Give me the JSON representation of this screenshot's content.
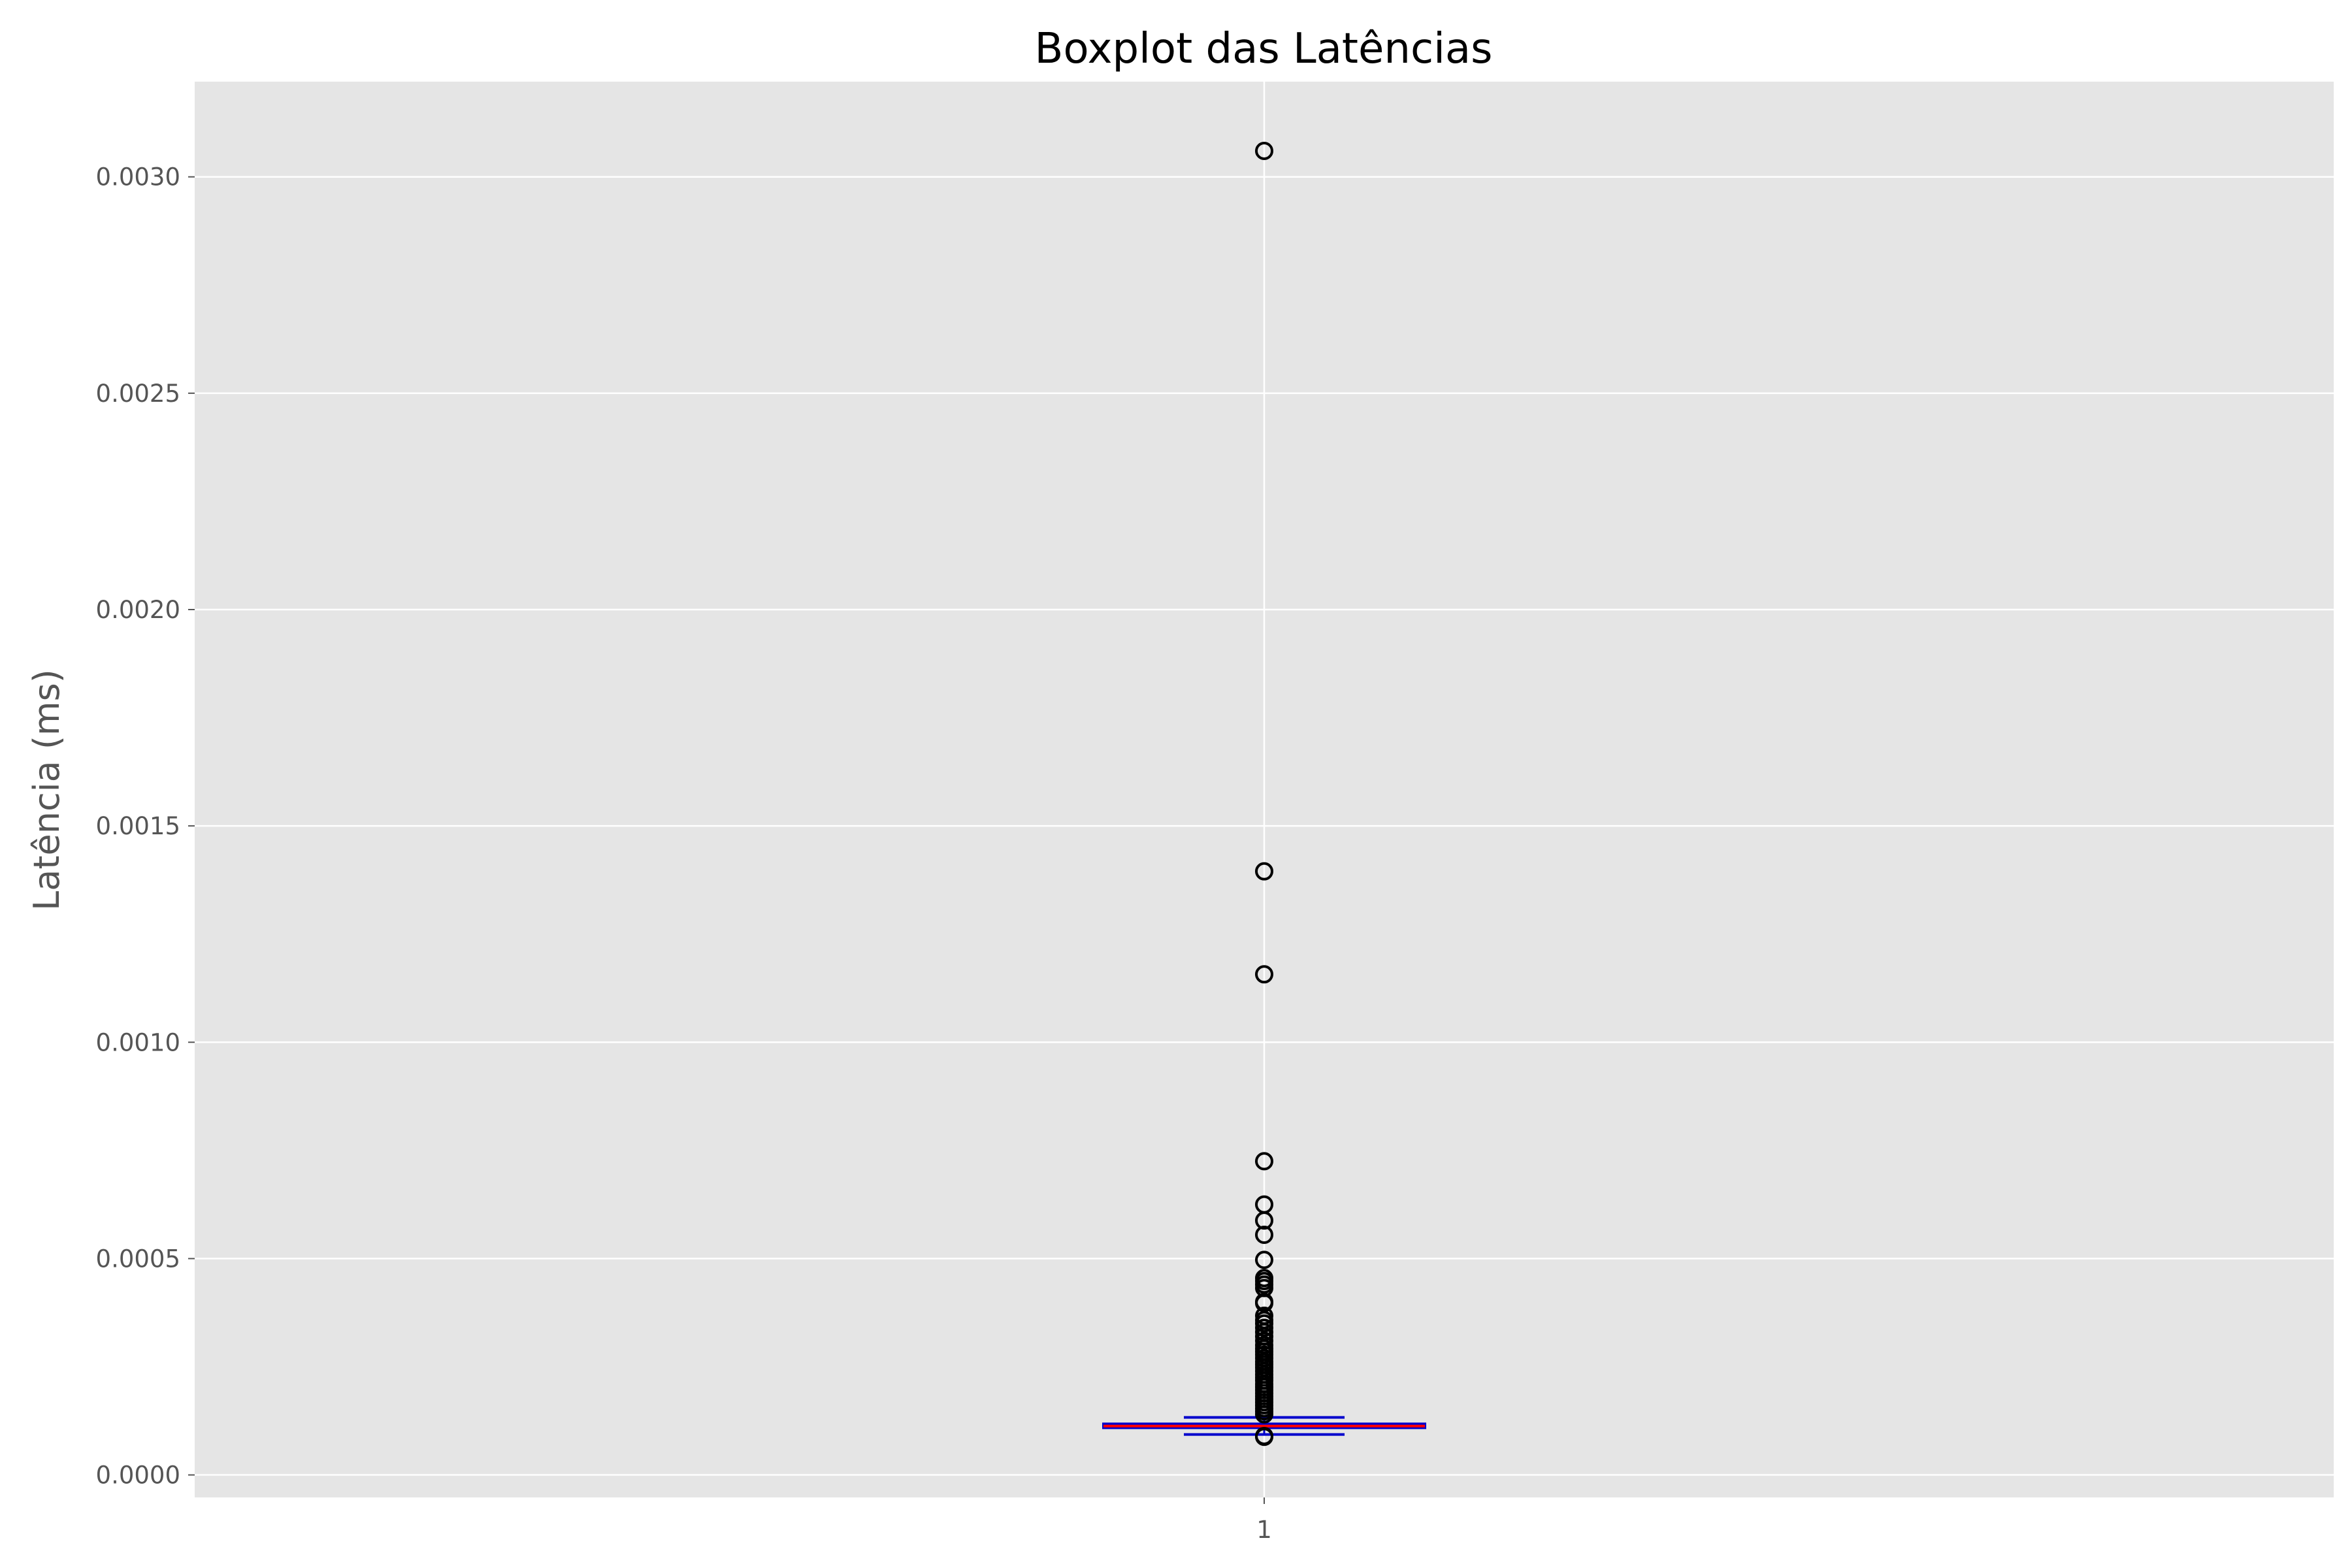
{
  "chart_data": {
    "type": "boxplot",
    "title": "Boxplot das Latências",
    "xlabel": "",
    "ylabel": "Latência (ms)",
    "ylim": [
      -5.2e-05,
      0.00322
    ],
    "grid": true,
    "categories": [
      "1"
    ],
    "y_ticks": [
      {
        "value": 0.0,
        "label": "0.0000"
      },
      {
        "value": 0.0005,
        "label": "0.0005"
      },
      {
        "value": 0.001,
        "label": "0.0010"
      },
      {
        "value": 0.0015,
        "label": "0.0015"
      },
      {
        "value": 0.002,
        "label": "0.0020"
      },
      {
        "value": 0.0025,
        "label": "0.0025"
      },
      {
        "value": 0.003,
        "label": "0.0030"
      }
    ],
    "box": {
      "position": 1,
      "whisker_low": 9.35e-05,
      "q1": 0.000109,
      "median": 0.000113,
      "q3": 0.000118,
      "whisker_high": 0.000133,
      "outliers": [
        0.00306,
        0.001395,
        0.001157,
        0.000725,
        0.000625,
        0.000588,
        0.000555,
        0.000497,
        0.000455,
        0.000448,
        0.00044,
        0.000432,
        0.0004,
        0.000397,
        0.000368,
        0.000358,
        0.00035,
        0.00034,
        0.00033,
        0.00032,
        0.00031,
        0.0003,
        0.000292,
        0.000285,
        0.000278,
        0.00027,
        0.000262,
        0.000255,
        0.000248,
        0.00024,
        0.000232,
        0.000225,
        0.000218,
        0.00021,
        0.000203,
        0.000196,
        0.000189,
        0.000182,
        0.000175,
        0.000168,
        0.000161,
        0.000154,
        0.000147,
        0.00014,
        8.8e-05,
        9e-05
      ]
    },
    "colors": {
      "background": "#e5e5e5",
      "grid": "#ffffff",
      "box": "#0000cc",
      "median": "#ff0000",
      "outlier_edge": "#000000",
      "text": "#555555",
      "title": "#000000"
    }
  }
}
